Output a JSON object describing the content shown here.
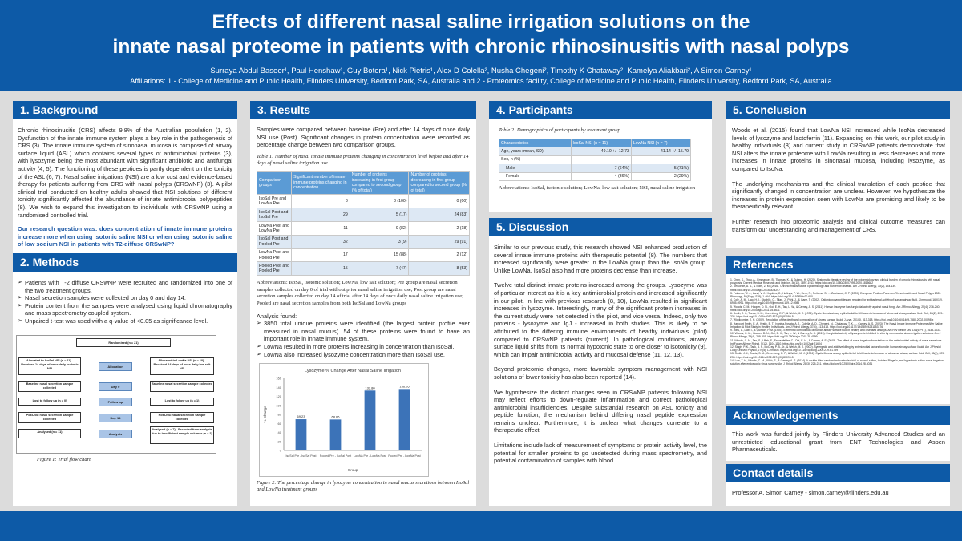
{
  "header": {
    "title_line1": "Effects of different nasal saline irrigation solutions on the",
    "title_line2": "innate nasal proteome in patients with chronic rhinosinusitis with nasal polyps",
    "authors": "Surraya Abdul Baseer¹, Paul Henshaw¹, Guy Botera¹, Nick Pietris¹, Alex D Colella², Nusha Chegeni², Timothy K Chataway², Kamelya Aliakbari², A Simon Carney¹",
    "affiliations": "Affiliations: 1 - College of Medicine and Public Health, Flinders University, Bedford Park, SA, Australia and 2 - Proteomics facility, College of Medicine and Public Health, Flinders University, Bedford Park, SA, Australia"
  },
  "background": {
    "heading": "1. Background",
    "body": "Chronic rhinosinusitis (CRS) affects 9.8% of the Australian population (1, 2). Dysfunction of the innate immune system plays a key role in the pathogenesis of CRS (3). The innate immune system of sinonasal mucosa is composed of airway surface liquid (ASL) which contains several types of antimicrobial proteins (3), with lysozyme being the most abundant with significant antibiotic and antifungal activity (4, 5). The functioning of these peptides is partly dependent on the tonicity of the ASL (6, 7). Nasal saline irrigations (NSI) are a low cost and evidence-based therapy for patients suffering from CRS with nasal polyps (CRSwNP) (3). A pilot clinical trial conducted on healthy adults showed that NSI solutions of different tonicity significantly affected the abundance of innate antimicrobial polypeptides (8). We wish to expand this investigation to individuals with CRSwNP using a randomised controlled trial.",
    "question": "Our research question was: does concentration of innate immune proteins increase more when using isotonic saline NSI or when using isotonic saline of low sodium NSI in patients with T2-diffuse CRSwNP?"
  },
  "methods": {
    "heading": "2. Methods",
    "bullets": [
      "Patients with T-2 diffuse CRSwNP were recruited and randomized into one of the two treatment groups.",
      "Nasal secretion samples were collected on day 0 and day 14.",
      "Protein content from the samples were analysed using liquid chromatography and mass spectrometry coupled system.",
      "Unpaired t-test was used with a q-value of <0.05 as significance level."
    ],
    "figure_caption": "Figure 1: Trial flow chart",
    "flow": {
      "randomised": "Randomised (n = 21)",
      "alloc_left": "Allocated to IsoSal NSI (n = 11) - Received 14 days of once daily isotonic NSI",
      "alloc_mid": "Allocation",
      "alloc_right": "Allocated to LowNa NSI (n = 10) - Received 14 days of once daily low salt NSI",
      "base_left": "Baseline nasal secretion sample collected",
      "base_mid": "Day 0",
      "base_right": "Baseline nasal secretion sample collected",
      "lost_left": "Lost to follow up (n = 0)",
      "lost_mid": "Follow up",
      "lost_right": "Lost to follow up (n = 1)",
      "post_left": "Post-NSI nasal secretion sample collected",
      "post_mid": "Day 14",
      "post_right": "Post-NSI nasal secretion sample collected",
      "anal_left": "Analysed (n = 11)",
      "anal_mid": "Analysis",
      "anal_right": "Analysed (n = 7) - Excluded from analysis due to insufficient sample volumes (n = 2)"
    }
  },
  "results": {
    "heading": "3. Results",
    "intro": "Samples were compared between baseline (Pre) and after 14 days of once daily NSI use (Post). Significant changes in protein concentration were recorded as percentage change between two comparison groups.",
    "table_caption": "Table 1: Number of nasal innate immune proteins changing in concentration level before and after 14 days of nasal saline irrigation use",
    "table_headers": [
      "Comparison groups",
      "Significant number of innate immune proteins changing in concentration",
      "Number of proteins increasing in first group compared to second group (% of total)",
      "Number of proteins decreasing in first group compared to second group (% of total)"
    ],
    "table_rows": [
      [
        "IsoSal Pre and LowNa Pre",
        "8",
        "8 (100)",
        "0 (00)"
      ],
      [
        "IsoSal Post and IsoSal Pre",
        "29",
        "5 (17)",
        "24 (83)"
      ],
      [
        "LowNa Post and LowNa Pre",
        "11",
        "9 (82)",
        "2 (18)"
      ],
      [
        "IsoSal Post and Pooled Pre",
        "32",
        "3 (9)",
        "29 (91)"
      ],
      [
        "LowNa Post and Pooled Pre",
        "17",
        "15 (88)",
        "2 (12)"
      ],
      [
        "Pooled Post and Pooled Pre",
        "15",
        "7 (47)",
        "8 (53)"
      ]
    ],
    "abbrev": "Abbreviations: IsoSal, isotonic solution; LowNa, low salt solution; Pre group are nasal secretion samples collected on day 0 of trial without prior nasal saline irrigation use; Post group are nasal secretion samples collected on day 14 of trial after 14 days of once daily nasal saline irrigation use; Pooled are nasal secretion samples from both IsoSal and LowNa groups",
    "analysis_title": "Analysis found:",
    "analysis": [
      "3850 total unique proteins were identified (the largest protein profile ever measured in nasal mucus). 54 of these proteins were found to have an important role in innate immune system.",
      "LowNa resulted in more proteins increasing in concentration than IsoSal.",
      "LowNa also increased lysozyme concentration more than IsoSal use."
    ],
    "figure_caption": "Figure 2: The percentage change in lysozyme concentration in nasal mucus secretions between IsoSal and LowNa treatment groups"
  },
  "chart_data": {
    "type": "bar",
    "title": "Lysozyme % Change After Nasal Saline Irrigation",
    "categories": [
      "IsoSal Pre - IsoSal Post",
      "Pooled Pre - IsoSal Post",
      "LowNa Pre - LowNa Post",
      "Pooled Pre - LowNa Post"
    ],
    "values": [
      69.23,
      68.66,
      132.8,
      136.26
    ],
    "labels": [
      "69.23",
      "68.66",
      "132.80",
      "136.26"
    ],
    "xlabel": "Group",
    "ylabel": "% Change",
    "ylim": [
      0,
      160
    ],
    "yticks": [
      "0",
      "20",
      "40",
      "60",
      "80",
      "100",
      "120",
      "140",
      "160"
    ],
    "grid": false,
    "color": "#3c73b8"
  },
  "participants": {
    "heading": "4. Participants",
    "table_caption": "Table 2: Demographics of participants by treatment group",
    "headers": [
      "Characteristics",
      "IsoSal NSI (n = 11)",
      "LowNa NSI (n = 7)"
    ],
    "rows": [
      [
        "Age, years (mean, SD)",
        "49.10 +/- 12.73",
        "41.14 +/- 15.79"
      ],
      [
        "Sex, n (%)",
        "",
        ""
      ],
      [
        "Male",
        "7 (64%)",
        "5 (71%)"
      ],
      [
        "Female",
        "4 (36%)",
        "2 (29%)"
      ]
    ],
    "abbrev": "Abbreviations: IsoSal, isotonic solution; LowNa, low salt solution; NSI, nasal saline irrigation"
  },
  "discussion": {
    "heading": "5. Discussion",
    "paragraphs": [
      "Similar to our previous study, this research showed NSI enhanced production of several innate immune proteins with therapeutic potential (8). The numbers that increased significantly were greater in the LowNa group than the IsoNa group. Unlike LowNa, IsoSal also had more proteins decrease than increase.",
      "Twelve total distinct innate proteins increased among the groups. Lysozyme was of particular interest as it is a key antimicrobial protein and increased significantly in our pilot. In line with previous research (8, 10), LowNa resulted in significant increases in lysozyme. Interestingly, many of the significant protein increases in the current study were not detected in the pilot, and vice versa. Indeed, only two proteins - lysozyme and IgJ - increased in both studies. This is likely to be attributed to the differing immune environments of healthy individuals (pilot) compared to CRSwNP patients (current). In pathological conditions, airway surface liquid shifts from its normal hypotonic state to one closer to isotonicity (9), which can impair antimicrobial activity and mucosal defense (11, 12, 13).",
      "Beyond proteomic changes, more favorable symptom management with NSI solutions of lower tonicity has also been reported (14).",
      "We hypothesize the distinct changes seen in CRSwNP patients following NSI may reflect efforts to down-regulate inflammation and correct pathological antimicrobial insufficiencies. Despite substantial research on ASL tonicity and peptide function, the mechanism behind differing nasal peptide expression remains unclear. Furthermore, it is unclear what changes correlate to a therapeutic effect.",
      "Limitations include lack of measurement of symptoms or protein activity level, the potential for smaller proteins to go undetected during mass spectrometry, and potential contamination of samples with blood."
    ]
  },
  "conclusion": {
    "heading": "5. Conclusion",
    "paragraphs": [
      "Woods et al. (2015) found that LowNa NSI increased while IsoNa decreased levels of lysozyme and lactoferrin (11). Expanding on this work, our pilot study in healthy individuals (8) and current study in CRSwNP patients demonstrate that NSI alters the innate proteome with LowNa resulting in less decreases and more increases in innate proteins in sinonasal mucosa, including lysozyme, as compared to IsoNa.",
      "The underlying mechanisms and the clinical translation of each peptide that significantly changed in concentration are unclear. However, we hypothesize the increases in protein expression seen with LowNa are promising and likely to be therapeutically relevant.",
      "Further research into proteomic analysis and clinical outcome measures can transform our understanding and management of CRS."
    ]
  },
  "references": {
    "heading": "References",
    "items": [
      "1. Chen, S., Zhou, A., Emmanuel, B., Thomas, K., & Guiang, H. (2020). Systematic literature review of the epidemiology and clinical burden of chronic rhinosinusitis with nasal polyposis. Current Medical Research and Opinion, 36(11), 1897-1911. https://doi.org/10.1080/03007995.2020.1815682",
      "2. DeConde, A. S., & Soler, Z. M. (2016). Chronic rhinosinusitis: Epidemiology and burden of disease. Am J Rhinol Allergy, 30(2), 134-139. https://doi.org/10.2500/ajra.2016.30.4297",
      "3. Fokkens, W. J., Lund, V. J., Hopkins, C., Hellings, P. W., Kern, R., Reitsma, S., ... Zwetsloot, C. P. (2020). European Position Paper on Rhinosinusitis and Nasal Polyps 2020. Rhinology, 58(Suppl S29), 1-464. https://doi.org/10.4193/Rhin20.600",
      "4. Cole, A. M., Liao, H. I., Stuchlik, O., Tilan, J., Pohl, J., & Ganz, T. (2002). Cationic polypeptides are required for antibacterial activity of human airway fluid. J Immunol, 169(12), 6985-6991. https://doi.org/10.4049/jimmunol.169.12.6985",
      "5. Woods, C. M., Hooper, D. N., Ooi, E. H., Tan, L. W., & Carney, A. S. (2011). Human lysozyme has fungicidal activity against nasal fungi. Am J Rhinol Allergy, 25(4), 236-240. https://doi.org/10.2500/ajra.2011.25.3631",
      "6. Smith, J. J., Travis, S. M., Greenberg, E. P., & Welsh, M. J. (1996). Cystic fibrosis airway epithelia fail to kill bacteria because of abnormal airway surface fluid. Cell, 85(2), 229-236. https://doi.org/10.1016/s0092-8674(00)81099-5",
      "7. Widdicombe, J. H. (2002). Regulation of the depth and composition of airway surface liquid. J Anat, 201(4), 313-318. https://doi.org/10.1046/j.1469-7580.2002.00098.x",
      "8. Harcourt Smith, E. A., Krstic, E. T., Ivanisa-Posata, A. J., Colella, A. D., Chegeni, N., Chataway, T. K., ... Carney, A. S. (2023). The Nasal Innate Immune Proteome After Saline Irrigation: A Pilot Study in Healthy Individuals. Am J Rhinol Allergy, 37(4), 413-418. https://doi.org/10.1177/19458924231153176",
      "9. Joris, L., Dab, I., & Quinton, P. M. (1993). Elemental composition of human airway surface fluid in healthy and diseased airways. Am Rev Respir Dis, 148(6 Pt 1), 1633-1637.",
      "10. Woods, C. M., Hooper, D. N., Ooi, E. H., Tan, L. W., & Carney, A. S. (2015). Fungicidal activity of lysozyme is inhibited in vitro by commercial sinus irrigation solutions. Am J Rhinol Allergy, 29(4), 299-301. https://doi.org/10.2500/ajra.2015.29.4199",
      "11. Woods, C. M., Tan, S., Ullah, S., Frauenfelder, C., Ooi, E. H., & Carney, A. S. (2015). The effect of nasal irrigation formulation on the antimicrobial activity of nasal secretions. Int Forum Allergy Rhinol, 5(12), 1104-1110. https://doi.org/10.1002/alr.21604",
      "12. Singh, P. K., Tack, B. F., McCray, P. B., Jr., & Welsh, M. J. (2000). Synergistic and additive killing by antimicrobial factors found in human airway surface liquid. Am J Physiol Lung Cell Mol Physiol, 279(5), L799-805. https://doi.org/10.1152/ajplung.2000.279.5.L799",
      "13. Smith, J. J., Travis, S. M., Greenberg, E. P., & Welsh, M. J. (1996). Cystic fibrosis airway epithelia fail to kill bacteria because of abnormal airway surface fluid. Cell, 85(2), 229-236. https://doi.org/10.1016/s0092-8674(00)81099-5",
      "14. Low, T. H., Woods, C. M., Ullah, S., & Carney, A. S. (2014). A double-blind randomized controlled trial of normal saline, lactated Ringer's, and hypertonic saline nasal irrigation solution after endoscopic sinus surgery. Am J Rhinol Allergy, 28(3), 225-231. https://doi.org/10.2500/ajra.2014.28.4031"
    ]
  },
  "acknowledgements": {
    "heading": "Acknowledgements",
    "body": "This work was funded jointly by Flinders University Advanced Studies and an unrestricted educational grant from ENT Technologies and Aspen Pharmaceuticals."
  },
  "contact": {
    "heading": "Contact details",
    "body": "Professor A. Simon Carney - simon.carney@flinders.edu.au"
  }
}
